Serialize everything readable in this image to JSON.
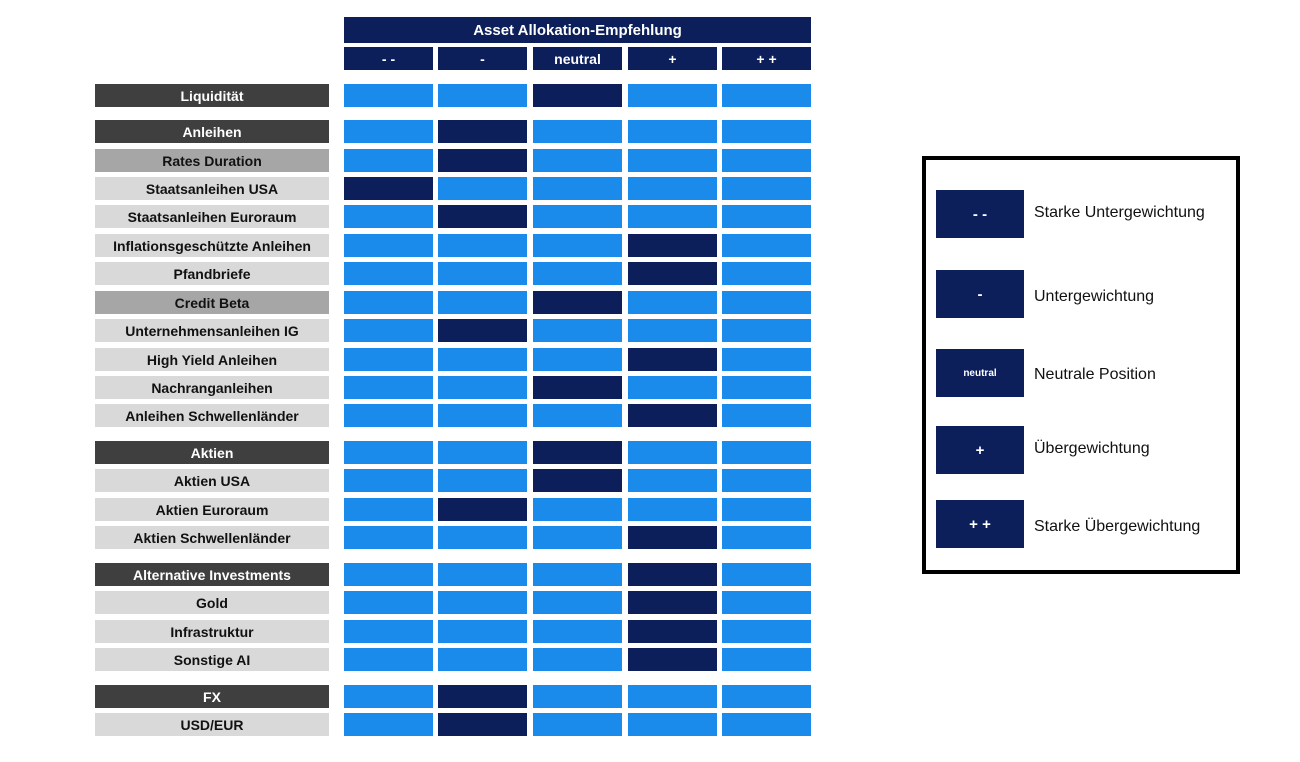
{
  "colors": {
    "light": "#1a8bea",
    "dark": "#0c1f5b",
    "category_bg": "#3f3f3f",
    "sub_bg": "#a6a6a6",
    "item_bg": "#d9d9d9"
  },
  "chart_data": {
    "type": "table",
    "title": "Asset Allokation-Empfehlung",
    "columns": [
      "- -",
      "-",
      "neutral",
      "+",
      "+ +"
    ],
    "rows": [
      {
        "label": "Liquidität",
        "kind": "category",
        "position": "neutral"
      },
      {
        "label": "Anleihen",
        "kind": "category",
        "position": "-"
      },
      {
        "label": "Rates Duration",
        "kind": "subcategory",
        "position": "-"
      },
      {
        "label": "Staatsanleihen USA",
        "kind": "item",
        "position": "- -"
      },
      {
        "label": "Staatsanleihen Euroraum",
        "kind": "item",
        "position": "-"
      },
      {
        "label": "Inflationsgeschützte Anleihen",
        "kind": "item",
        "position": "+"
      },
      {
        "label": "Pfandbriefe",
        "kind": "item",
        "position": "+"
      },
      {
        "label": "Credit Beta",
        "kind": "subcategory",
        "position": "neutral"
      },
      {
        "label": "Unternehmensanleihen IG",
        "kind": "item",
        "position": "-"
      },
      {
        "label": "High Yield Anleihen",
        "kind": "item",
        "position": "+"
      },
      {
        "label": "Nachranganleihen",
        "kind": "item",
        "position": "neutral"
      },
      {
        "label": "Anleihen Schwellenländer",
        "kind": "item",
        "position": "+"
      },
      {
        "label": "Aktien",
        "kind": "category",
        "position": "neutral"
      },
      {
        "label": "Aktien USA",
        "kind": "item",
        "position": "neutral"
      },
      {
        "label": "Aktien Euroraum",
        "kind": "item",
        "position": "-"
      },
      {
        "label": "Aktien Schwellenländer",
        "kind": "item",
        "position": "+"
      },
      {
        "label": "Alternative Investments",
        "kind": "category",
        "position": "+"
      },
      {
        "label": "Gold",
        "kind": "item",
        "position": "+"
      },
      {
        "label": "Infrastruktur",
        "kind": "item",
        "position": "+"
      },
      {
        "label": "Sonstige AI",
        "kind": "item",
        "position": "+"
      },
      {
        "label": "FX",
        "kind": "category",
        "position": "-"
      },
      {
        "label": "USD/EUR",
        "kind": "item",
        "position": "-"
      }
    ]
  },
  "legend": [
    {
      "symbol": "- -",
      "text": "Starke Untergewichtung"
    },
    {
      "symbol": "-",
      "text": "Untergewichtung"
    },
    {
      "symbol": "neutral",
      "text": "Neutrale Position"
    },
    {
      "symbol": "+",
      "text": "Übergewichtung"
    },
    {
      "symbol": "+ +",
      "text": "Starke Übergewichtung"
    }
  ]
}
